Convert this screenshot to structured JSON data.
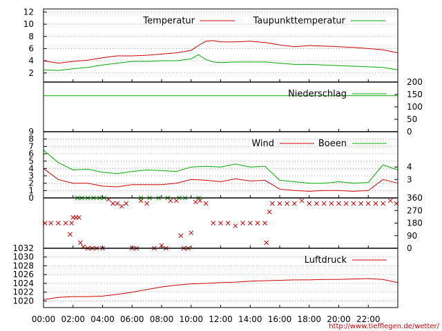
{
  "credit": "http://www.tiefflegen.de/wetter/",
  "colors": {
    "red": "#cc0000",
    "green": "#00aa00",
    "grid": "#999999",
    "axis": "#000000"
  },
  "x_axis": {
    "tick_labels": [
      "00:00",
      "02:00",
      "04:00",
      "06:00",
      "08:00",
      "10:00",
      "12:00",
      "14:00",
      "16:00",
      "18:00",
      "20:00",
      "22:00"
    ],
    "range_hours": [
      0,
      24
    ]
  },
  "chart_data": [
    {
      "type": "line",
      "panel": "temperature",
      "ylim": [
        0.5,
        12.5
      ],
      "y_ticks": [
        2,
        4,
        6,
        8,
        10,
        12
      ],
      "grid": true,
      "x": [
        0,
        1,
        2,
        3,
        4,
        5,
        6,
        7,
        8,
        9,
        10,
        10.5,
        11,
        11.5,
        12,
        13,
        14,
        15,
        16,
        17,
        18,
        19,
        20,
        21,
        22,
        23,
        24
      ],
      "series": [
        {
          "name": "Temperatur",
          "color": "red",
          "values": [
            4.0,
            3.6,
            3.9,
            4.1,
            4.5,
            4.8,
            4.8,
            4.9,
            5.1,
            5.3,
            5.7,
            6.5,
            7.2,
            7.3,
            7.1,
            7.1,
            7.2,
            7.0,
            6.6,
            6.3,
            6.5,
            6.4,
            6.3,
            6.2,
            6.0,
            5.8,
            5.3
          ]
        },
        {
          "name": "Taupunkttemperatur",
          "color": "green",
          "values": [
            2.5,
            2.4,
            2.7,
            2.9,
            3.3,
            3.6,
            3.9,
            3.9,
            4.0,
            4.0,
            4.3,
            5.0,
            4.2,
            3.8,
            3.7,
            3.8,
            3.8,
            3.8,
            3.6,
            3.4,
            3.4,
            3.3,
            3.2,
            3.1,
            3.0,
            2.9,
            2.5
          ]
        }
      ]
    },
    {
      "type": "line",
      "panel": "precipitation",
      "ylim": [
        0,
        200
      ],
      "y_ticks_right": [
        0,
        50,
        100,
        150,
        200
      ],
      "x": [
        0,
        24
      ],
      "series": [
        {
          "name": "Niederschlag",
          "color": "green",
          "values": [
            145,
            145
          ]
        }
      ]
    },
    {
      "type": "line",
      "panel": "wind",
      "ylim": [
        0,
        9
      ],
      "y_ticks": [
        0,
        1,
        2,
        3,
        4,
        5,
        6,
        7,
        8,
        9
      ],
      "y_ticks_right": [
        {
          "value": 4.2,
          "label": "4"
        },
        {
          "value": 2.5,
          "label": "3"
        }
      ],
      "grid": true,
      "x": [
        0,
        1,
        2,
        3,
        4,
        5,
        6,
        7,
        8,
        9,
        10,
        11,
        12,
        13,
        14,
        15,
        16,
        17,
        18,
        19,
        20,
        21,
        22,
        23,
        24
      ],
      "series": [
        {
          "name": "Wind",
          "color": "red",
          "values": [
            4.0,
            2.5,
            2.0,
            2.0,
            1.6,
            1.5,
            1.8,
            1.8,
            1.8,
            2.0,
            2.5,
            2.4,
            2.2,
            2.6,
            2.3,
            2.4,
            1.2,
            1.0,
            0.9,
            1.0,
            1.0,
            0.9,
            1.0,
            2.5,
            2.0
          ]
        },
        {
          "name": "Boeen",
          "color": "green",
          "values": [
            6.5,
            4.8,
            3.8,
            3.9,
            3.5,
            3.3,
            3.6,
            3.8,
            3.7,
            3.6,
            4.2,
            4.3,
            4.2,
            4.6,
            4.2,
            4.3,
            2.4,
            2.2,
            2.0,
            2.0,
            2.2,
            2.0,
            2.1,
            4.5,
            3.8
          ]
        }
      ]
    },
    {
      "type": "scatter",
      "panel": "wind-direction",
      "ylim": [
        0,
        360
      ],
      "y_ticks_right": [
        0,
        90,
        180,
        270,
        360
      ],
      "series": [
        {
          "name": "",
          "color": "red",
          "points": [
            [
              0.1,
              180
            ],
            [
              0.5,
              180
            ],
            [
              1.0,
              180
            ],
            [
              1.5,
              180
            ],
            [
              1.8,
              100
            ],
            [
              1.9,
              180
            ],
            [
              2.0,
              220
            ],
            [
              2.2,
              220
            ],
            [
              2.4,
              220
            ],
            [
              2.5,
              40
            ],
            [
              2.7,
              10
            ],
            [
              3.0,
              0
            ],
            [
              3.3,
              0
            ],
            [
              3.6,
              0
            ],
            [
              4.0,
              0
            ],
            [
              4.4,
              350
            ],
            [
              4.7,
              320
            ],
            [
              5.0,
              320
            ],
            [
              5.3,
              300
            ],
            [
              5.6,
              320
            ],
            [
              6.0,
              0
            ],
            [
              6.3,
              0
            ],
            [
              6.6,
              340
            ],
            [
              7.0,
              320
            ],
            [
              7.5,
              0
            ],
            [
              8.0,
              20
            ],
            [
              8.3,
              0
            ],
            [
              8.6,
              340
            ],
            [
              9.0,
              340
            ],
            [
              9.3,
              90
            ],
            [
              9.5,
              0
            ],
            [
              9.8,
              0
            ],
            [
              10.0,
              110
            ],
            [
              10.3,
              330
            ],
            [
              10.6,
              340
            ],
            [
              11.0,
              320
            ],
            [
              11.5,
              180
            ],
            [
              12.0,
              180
            ],
            [
              12.5,
              180
            ],
            [
              13.0,
              160
            ],
            [
              13.5,
              180
            ],
            [
              14.0,
              180
            ],
            [
              14.5,
              180
            ],
            [
              15.0,
              180
            ],
            [
              15.1,
              40
            ],
            [
              15.3,
              260
            ],
            [
              15.5,
              320
            ],
            [
              16.0,
              320
            ],
            [
              16.5,
              320
            ],
            [
              17.0,
              320
            ],
            [
              17.5,
              340
            ],
            [
              18.0,
              320
            ],
            [
              18.5,
              320
            ],
            [
              19.0,
              320
            ],
            [
              19.5,
              320
            ],
            [
              20.0,
              320
            ],
            [
              20.5,
              320
            ],
            [
              21.0,
              320
            ],
            [
              21.5,
              320
            ],
            [
              22.0,
              320
            ],
            [
              22.5,
              320
            ],
            [
              23.0,
              320
            ],
            [
              23.5,
              340
            ],
            [
              23.9,
              320
            ]
          ]
        },
        {
          "name": "",
          "color": "green",
          "points": [
            [
              2.3,
              360
            ],
            [
              2.6,
              360
            ],
            [
              3.0,
              360
            ],
            [
              3.4,
              360
            ],
            [
              3.8,
              360
            ],
            [
              4.1,
              360
            ],
            [
              6.6,
              360
            ],
            [
              7.2,
              360
            ],
            [
              7.8,
              360
            ],
            [
              8.4,
              360
            ],
            [
              9.2,
              360
            ],
            [
              9.6,
              360
            ],
            [
              10.5,
              360
            ]
          ]
        }
      ]
    },
    {
      "type": "line",
      "panel": "pressure",
      "ylim": [
        1018.5,
        1032
      ],
      "y_ticks": [
        1020,
        1022,
        1024,
        1026,
        1028,
        1030,
        1032
      ],
      "grid": true,
      "x": [
        0,
        1,
        2,
        3,
        4,
        5,
        6,
        7,
        8,
        9,
        10,
        11,
        12,
        13,
        14,
        15,
        16,
        17,
        18,
        19,
        20,
        21,
        22,
        23,
        24
      ],
      "series": [
        {
          "name": "Luftdruck",
          "color": "red",
          "values": [
            1020.3,
            1020.8,
            1021.0,
            1021.0,
            1021.1,
            1021.5,
            1022.0,
            1022.6,
            1023.2,
            1023.6,
            1023.9,
            1024.0,
            1024.2,
            1024.3,
            1024.5,
            1024.6,
            1024.7,
            1024.8,
            1024.8,
            1024.9,
            1024.9,
            1025.0,
            1025.1,
            1024.9,
            1024.2
          ]
        }
      ]
    }
  ]
}
